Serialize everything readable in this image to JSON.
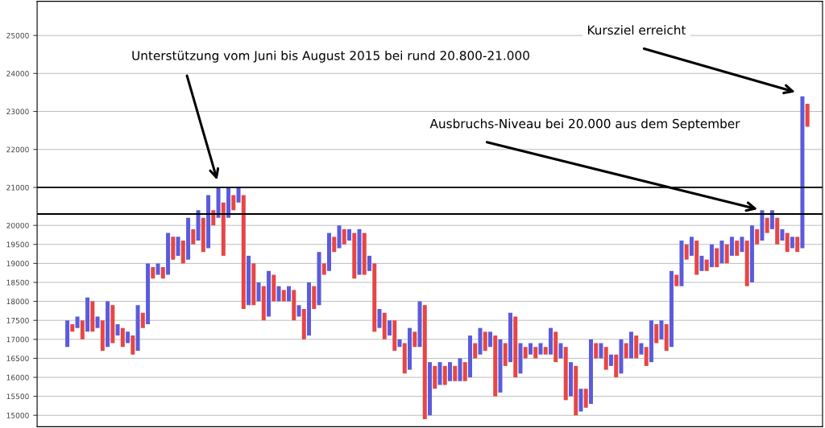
{
  "chart_data": {
    "type": "bar",
    "categories": [
      null,
      null,
      null,
      null,
      null,
      null,
      null,
      null,
      null,
      null,
      null,
      null,
      null,
      null,
      null,
      null,
      null,
      null,
      null,
      null,
      null,
      null,
      null,
      null,
      null,
      null,
      null,
      null,
      null,
      null,
      null,
      null,
      null,
      null,
      null,
      null,
      null,
      null,
      null,
      null,
      null,
      null,
      null,
      null,
      null,
      null,
      null,
      null,
      null,
      null,
      null,
      null,
      null,
      null,
      null,
      null,
      null,
      null,
      null,
      null,
      null,
      null,
      null,
      null,
      null,
      null,
      null,
      null,
      null,
      null,
      null,
      null,
      null,
      null,
      null,
      null,
      null,
      null,
      null,
      null,
      null,
      null,
      null,
      null,
      null,
      null,
      null,
      null,
      null,
      null,
      null,
      null,
      null,
      null,
      null,
      null,
      null,
      null,
      null,
      null,
      null,
      null,
      null,
      null,
      null,
      null,
      null,
      null,
      null,
      null,
      null,
      null,
      null,
      null,
      null,
      null,
      null,
      null,
      null,
      null,
      null,
      null,
      null,
      null,
      null,
      null,
      null,
      null,
      null,
      null,
      null,
      null,
      null,
      null,
      null,
      null,
      null,
      null,
      null,
      null,
      null,
      null,
      null,
      null,
      null,
      null,
      null,
      null
    ],
    "base": [
      16800,
      17200,
      17300,
      17000,
      17200,
      17200,
      17300,
      16700,
      16800,
      16900,
      17100,
      16800,
      16900,
      16600,
      16700,
      17300,
      17400,
      18600,
      18700,
      18600,
      18700,
      19100,
      19200,
      19000,
      19100,
      19500,
      19600,
      19300,
      19400,
      20000,
      20200,
      19200,
      20200,
      20400,
      20600,
      17800,
      17900,
      17900,
      18000,
      17500,
      17600,
      18000,
      18000,
      18000,
      18000,
      17500,
      17600,
      17000,
      17100,
      17800,
      17900,
      18700,
      18800,
      19300,
      19400,
      19500,
      19600,
      18600,
      18700,
      18700,
      18800,
      17200,
      17300,
      17000,
      17100,
      16700,
      16800,
      16100,
      16200,
      16800,
      16800,
      14900,
      15000,
      15700,
      15800,
      15800,
      15900,
      15900,
      15900,
      15900,
      16000,
      16500,
      16600,
      16700,
      16800,
      15500,
      15600,
      16300,
      16400,
      16000,
      16100,
      16500,
      16600,
      16500,
      16600,
      16600,
      16600,
      16400,
      16500,
      15400,
      15500,
      15000,
      15100,
      15200,
      15300,
      16500,
      16500,
      16200,
      16300,
      16000,
      16100,
      16500,
      16500,
      16500,
      16600,
      16300,
      16400,
      16900,
      17000,
      16700,
      16800,
      18400,
      18400,
      19100,
      19200,
      18700,
      18800,
      18800,
      18900,
      18900,
      19000,
      19000,
      19200,
      19200,
      19300,
      18400,
      18500,
      19500,
      19600,
      19800,
      19900,
      19500,
      19600,
      19300,
      19400,
      19300,
      19400,
      22600
    ],
    "values": [
      700,
      200,
      300,
      500,
      900,
      800,
      300,
      800,
      1200,
      1000,
      300,
      500,
      300,
      500,
      1200,
      400,
      1600,
      300,
      300,
      300,
      1100,
      600,
      500,
      600,
      1100,
      400,
      800,
      900,
      1400,
      400,
      800,
      1400,
      800,
      400,
      400,
      3000,
      1300,
      1100,
      500,
      900,
      1200,
      700,
      400,
      300,
      400,
      800,
      300,
      800,
      1400,
      600,
      1400,
      300,
      1000,
      400,
      600,
      400,
      300,
      1200,
      1200,
      1100,
      400,
      1800,
      500,
      700,
      400,
      800,
      200,
      800,
      1100,
      400,
      1200,
      3000,
      1400,
      600,
      600,
      500,
      500,
      400,
      600,
      500,
      1100,
      400,
      700,
      500,
      400,
      1600,
      1400,
      600,
      1300,
      1600,
      800,
      300,
      300,
      300,
      300,
      200,
      700,
      800,
      400,
      1400,
      900,
      1300,
      600,
      500,
      1700,
      400,
      400,
      600,
      300,
      600,
      900,
      400,
      700,
      600,
      300,
      500,
      1100,
      500,
      500,
      700,
      2000,
      300,
      1200,
      400,
      500,
      900,
      400,
      300,
      600,
      500,
      600,
      500,
      500,
      400,
      400,
      1200,
      1500,
      400,
      800,
      400,
      500,
      700,
      300,
      500,
      300,
      400,
      4000,
      600
    ],
    "colors": [
      "#5b5bdb",
      "#e64646",
      "#5b5bdb",
      "#e64646",
      "#5b5bdb",
      "#e64646",
      "#5b5bdb",
      "#e64646",
      "#5b5bdb",
      "#e64646",
      "#5b5bdb",
      "#e64646",
      "#5b5bdb",
      "#e64646",
      "#5b5bdb",
      "#e64646",
      "#5b5bdb",
      "#e64646",
      "#5b5bdb",
      "#e64646",
      "#5b5bdb",
      "#e64646",
      "#5b5bdb",
      "#e64646",
      "#5b5bdb",
      "#e64646",
      "#5b5bdb",
      "#e64646",
      "#5b5bdb",
      "#e64646",
      "#5b5bdb",
      "#e64646",
      "#5b5bdb",
      "#e64646",
      "#5b5bdb",
      "#e64646",
      "#5b5bdb",
      "#e64646",
      "#5b5bdb",
      "#e64646",
      "#5b5bdb",
      "#e64646",
      "#5b5bdb",
      "#e64646",
      "#5b5bdb",
      "#e64646",
      "#5b5bdb",
      "#e64646",
      "#5b5bdb",
      "#e64646",
      "#5b5bdb",
      "#e64646",
      "#5b5bdb",
      "#e64646",
      "#5b5bdb",
      "#e64646",
      "#5b5bdb",
      "#e64646",
      "#5b5bdb",
      "#e64646",
      "#5b5bdb",
      "#e64646",
      "#5b5bdb",
      "#e64646",
      "#5b5bdb",
      "#e64646",
      "#5b5bdb",
      "#e64646",
      "#5b5bdb",
      "#e64646",
      "#5b5bdb",
      "#e64646",
      "#5b5bdb",
      "#e64646",
      "#5b5bdb",
      "#e64646",
      "#5b5bdb",
      "#e64646",
      "#5b5bdb",
      "#e64646",
      "#5b5bdb",
      "#e64646",
      "#5b5bdb",
      "#e64646",
      "#5b5bdb",
      "#e64646",
      "#5b5bdb",
      "#e64646",
      "#5b5bdb",
      "#e64646",
      "#5b5bdb",
      "#e64646",
      "#5b5bdb",
      "#e64646",
      "#5b5bdb",
      "#e64646",
      "#5b5bdb",
      "#e64646",
      "#5b5bdb",
      "#e64646",
      "#5b5bdb",
      "#e64646",
      "#5b5bdb",
      "#e64646",
      "#5b5bdb",
      "#e64646",
      "#5b5bdb",
      "#e64646",
      "#5b5bdb",
      "#e64646",
      "#5b5bdb",
      "#e64646",
      "#5b5bdb",
      "#e64646",
      "#5b5bdb",
      "#e64646",
      "#5b5bdb",
      "#e64646",
      "#5b5bdb",
      "#e64646",
      "#5b5bdb",
      "#e64646",
      "#5b5bdb",
      "#e64646",
      "#5b5bdb",
      "#e64646",
      "#5b5bdb",
      "#e64646",
      "#5b5bdb",
      "#e64646",
      "#5b5bdb",
      "#e64646",
      "#5b5bdb",
      "#e64646",
      "#5b5bdb",
      "#e64646",
      "#5b5bdb",
      "#e64646",
      "#5b5bdb",
      "#e64646",
      "#5b5bdb",
      "#e64646",
      "#5b5bdb",
      "#e64646",
      "#5b5bdb",
      "#e64646",
      "#5b5bdb",
      "#e64646"
    ],
    "ylim": [
      14700,
      25900
    ],
    "yticks": [
      15000,
      15500,
      16000,
      16500,
      17000,
      17500,
      18000,
      18500,
      19000,
      19500,
      20000,
      21000,
      22000,
      23000,
      24000,
      25000
    ],
    "tick_labels": "y",
    "grid": true,
    "ref_lines": [
      {
        "axis": "y",
        "value": 21000,
        "color": "#000000"
      },
      {
        "axis": "y",
        "value": 20300,
        "color": "#000000"
      }
    ],
    "annotations": [
      "Unterstützung vom Juni bis August 2015 bei rund 20.800-21.000",
      "Ausbruchs-Niveau bei 20.000 aus dem September",
      "Kursziel erreicht"
    ]
  }
}
